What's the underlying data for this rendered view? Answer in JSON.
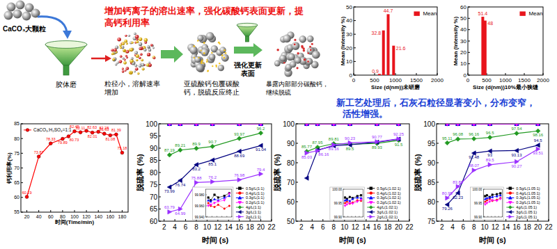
{
  "diagram": {
    "title": [
      "增加钙离子的溶出速率，强化碳酸钙表面更新，提",
      "高钙利用率"
    ],
    "nodes": [
      {
        "label": [
          "CaCO₃大颗粒"
        ]
      },
      {
        "label": [
          "胶体磨"
        ]
      },
      {
        "label": [
          "粒径小，溶解速率",
          "增加"
        ]
      },
      {
        "label": [
          "亚硫酸钙包覆碳酸",
          "钙，脱硫反应终止"
        ]
      },
      {
        "label": [
          "强化更新",
          "表面"
        ]
      },
      {
        "label": [
          "暴露内部部分碳酸钙，",
          "继续脱硫"
        ]
      }
    ]
  },
  "note": [
    "新工艺处理后，石灰石粒径显著变小，分布变窄，",
    "活性增强。"
  ],
  "chart_data": [
    {
      "type": "bar",
      "xlabel": "Size (d(nm))未研磨",
      "ylabel": "Mean (Intensity %)",
      "x": [
        615,
        712,
        825,
        955
      ],
      "series": [
        {
          "name": "Mean",
          "color": "#e8141c",
          "values": [
            0.9,
            32.8,
            44.7,
            21.6
          ]
        }
      ],
      "xlim": [
        0,
        2000
      ],
      "xticks": [
        0,
        500,
        1000,
        1500,
        2000
      ],
      "ylim": [
        0,
        50
      ],
      "yticks": [
        0,
        10,
        20,
        30,
        40,
        50
      ],
      "legend": "upper right",
      "data_labels": true
    },
    {
      "type": "bar",
      "xlabel": "Size (d(nm))10%最小狭缝",
      "ylabel": "Mean (Intensity %)",
      "x": [
        396,
        459
      ],
      "series": [
        {
          "name": "Mean",
          "color": "#e8141c",
          "values": [
            51.4,
            48
          ]
        }
      ],
      "xlim": [
        0,
        2000
      ],
      "xticks": [
        0,
        500,
        1000,
        1500,
        2000
      ],
      "ylim": [
        0,
        60
      ],
      "yticks": [
        0,
        10,
        20,
        30,
        40,
        50,
        60
      ],
      "legend": "upper right",
      "data_labels": true
    },
    {
      "type": "line",
      "xlabel": "时间(Time/min)",
      "ylabel": "钙利用率(%)",
      "x": [
        20,
        40,
        60,
        80,
        90,
        100,
        110,
        120,
        130,
        140,
        150,
        160,
        170,
        180
      ],
      "series": [
        {
          "name": "CaCO₃:H₂SO₄=1:1",
          "color": "#ff0000",
          "marker": "circle",
          "values": [
            60.19,
            73.87,
            78.33,
            79.89,
            80.73,
            82.45,
            82.11,
            82.63,
            82.01,
            82.28,
            81.63,
            81.08,
            81.39,
            75.18
          ]
        }
      ],
      "xlim": [
        10,
        190
      ],
      "xticks": [
        20,
        40,
        60,
        80,
        100,
        120,
        140,
        160,
        180
      ],
      "ylim": [
        55,
        85
      ],
      "yticks": [
        55,
        60,
        65,
        70,
        75,
        80,
        85
      ],
      "legend": "upper left",
      "data_labels": true
    },
    {
      "type": "line",
      "xlabel": "时间 (s)",
      "ylabel": "脱硫率 (%)",
      "x": [
        3,
        5,
        8,
        11,
        16,
        20
      ],
      "series": [
        {
          "name": "0.5g/L(1:1)",
          "color": "#000000",
          "marker": "square",
          "values": [
            100,
            100,
            100,
            100,
            100,
            100
          ],
          "data_labels": false
        },
        {
          "name": "0.4g/L(1:1)",
          "color": "#ff0000",
          "marker": "circle",
          "values": [
            100,
            100,
            100,
            100,
            100,
            100
          ],
          "data_labels": false
        },
        {
          "name": "0.3g/L(1:1)",
          "color": "#0000ff",
          "marker": "triangle-up",
          "values": [
            100,
            100,
            100,
            100,
            100,
            100
          ],
          "data_labels": false
        },
        {
          "name": "0.2g/L(1:1)",
          "color": "#ff00ff",
          "marker": "triangle-down",
          "values": [
            100,
            100,
            100,
            100,
            100,
            100
          ],
          "data_labels": false
        },
        {
          "name": "4g/L(1:1)",
          "color": "#229a22",
          "marker": "diamond",
          "values": [
            87.19,
            89.21,
            89.9,
            90.7,
            93.97,
            96.2
          ],
          "data_labels": true
        },
        {
          "name": "3g/L(1:1)",
          "color": "#000080",
          "marker": "triangle-left",
          "values": [
            73.99,
            76.74,
            83.2,
            85.1,
            88.69,
            91.04
          ],
          "data_labels": true
        },
        {
          "name": "2g/L(1:1)",
          "color": "#9b30ff",
          "marker": "triangle-right",
          "values": [
            63.79,
            64.99,
            75.88,
            76.2,
            76.98,
            79.4
          ],
          "data_labels": true
        }
      ],
      "xlim": [
        1,
        22
      ],
      "xticks": [
        2,
        4,
        6,
        8,
        10,
        12,
        14,
        16,
        18,
        20,
        22
      ],
      "ylim": [
        60,
        100
      ],
      "yticks": [
        60,
        65,
        70,
        75,
        80,
        85,
        90,
        95,
        100
      ],
      "legend": "lower right"
    },
    {
      "type": "line",
      "x": [
        3,
        5,
        8,
        11,
        16,
        20
      ],
      "series": [
        {
          "color": "#000000",
          "marker": "square",
          "values": [
            99.975,
            99.97,
            99.98,
            99.975,
            99.978,
            99.983
          ]
        },
        {
          "color": "#ff0000",
          "marker": "circle",
          "values": [
            99.965,
            99.96,
            99.958,
            99.962,
            99.955,
            99.96
          ]
        },
        {
          "color": "#0000ff",
          "marker": "triangle-up",
          "values": [
            99.97,
            99.968,
            99.972,
            99.97,
            99.975,
            99.978
          ]
        },
        {
          "color": "#ff00ff",
          "marker": "triangle-down",
          "values": [
            99.96,
            99.962,
            99.965,
            99.968,
            99.97,
            99.982
          ]
        }
      ],
      "xlim": [
        1,
        22
      ],
      "xticks": [
        2,
        6,
        10,
        14,
        18,
        22
      ],
      "ylim": [
        99.94,
        99.99
      ],
      "yticks": [
        {
          "value": 99.94,
          "label": "99.940"
        },
        {
          "value": 99.96,
          "label": "99.960"
        },
        {
          "value": 99.98,
          "label": "99.980"
        }
      ],
      "tick_labels": "y"
    },
    {
      "type": "line",
      "xlabel": "时间 (s)",
      "ylabel": "脱硫率 (%)",
      "x": [
        3,
        5,
        8,
        11,
        16,
        20
      ],
      "series": [
        {
          "name": "0.5g/L(1.02:1)",
          "color": "#000000",
          "marker": "square",
          "values": [
            100,
            100,
            100,
            100,
            100,
            100
          ],
          "data_labels": false
        },
        {
          "name": "0.4g/L(1.02:1)",
          "color": "#ff0000",
          "marker": "circle",
          "values": [
            100,
            100,
            100,
            100,
            100,
            100
          ],
          "data_labels": false
        },
        {
          "name": "0.3g/L(1.02:1)",
          "color": "#0000ff",
          "marker": "triangle-up",
          "values": [
            100,
            100,
            100,
            100,
            100,
            100
          ],
          "data_labels": false
        },
        {
          "name": "0.2g/L(1.02:1)",
          "color": "#ff00ff",
          "marker": "triangle-down",
          "values": [
            100,
            100,
            100,
            100,
            100,
            100
          ],
          "data_labels": false
        },
        {
          "name": "4g/L(1.02:1)",
          "color": "#229a22",
          "marker": "diamond",
          "values": [
            85.77,
            87.95,
            89.81,
            89.5,
            89.93,
            91.5
          ],
          "data_labels": true
        },
        {
          "name": "3g/L(1.02:1)",
          "color": "#000080",
          "marker": "triangle-left",
          "values": [
            72.1,
            86.5,
            88.7,
            89.2,
            90.57,
            92.1
          ],
          "data_labels": false
        },
        {
          "name": "2g/L(1.02:1)",
          "color": "#9b30ff",
          "marker": "triangle-right",
          "values": [
            85.03,
            86.16,
            89.16,
            90.23,
            90.77,
            92.25
          ],
          "data_labels": true
        }
      ],
      "xlim": [
        1,
        22
      ],
      "xticks": [
        2,
        4,
        6,
        8,
        10,
        12,
        14,
        16,
        18,
        20,
        22
      ],
      "ylim": [
        50,
        100
      ],
      "yticks": [
        50,
        60,
        70,
        80,
        90,
        100
      ],
      "legend": "lower right"
    },
    {
      "type": "line",
      "x": [
        3,
        5,
        8,
        11,
        16,
        20
      ],
      "series": [
        {
          "color": "#000000",
          "marker": "square",
          "values": [
            99.97,
            99.965,
            99.972,
            99.968,
            99.975,
            99.978
          ]
        },
        {
          "color": "#ff0000",
          "marker": "circle",
          "values": [
            99.95,
            99.955,
            99.948,
            99.952,
            99.96,
            99.958
          ]
        },
        {
          "color": "#0000ff",
          "marker": "triangle-up",
          "values": [
            99.96,
            99.962,
            99.958,
            99.965,
            99.97,
            99.968
          ]
        },
        {
          "color": "#ff00ff",
          "marker": "triangle-down",
          "values": [
            99.94,
            99.945,
            99.95,
            99.948,
            99.955,
            99.962
          ]
        }
      ],
      "xlim": [
        1,
        22
      ],
      "xticks": [
        2,
        6,
        10,
        14,
        18,
        22
      ],
      "ylim": [
        99.9,
        100
      ],
      "yticks": [
        {
          "value": 99.9,
          "label": "99.90"
        },
        {
          "value": 99.95,
          "label": "99.95"
        },
        {
          "value": 100,
          "label": "100.00"
        }
      ],
      "tick_labels": "y"
    },
    {
      "type": "line",
      "xlabel": "时间 (s)",
      "ylabel": "脱硫率 (%)",
      "x": [
        3,
        5,
        8,
        11,
        16,
        20
      ],
      "series": [
        {
          "name": "0.5g/L(1.05:1)",
          "color": "#000000",
          "marker": "square",
          "values": [
            100,
            100,
            100,
            100,
            100,
            100
          ],
          "data_labels": false
        },
        {
          "name": "0.4g/L(1.05:1)",
          "color": "#ff0000",
          "marker": "circle",
          "values": [
            100,
            100,
            100,
            100,
            100,
            100
          ],
          "data_labels": false
        },
        {
          "name": "0.3g/L(1.05:1)",
          "color": "#0000ff",
          "marker": "triangle-up",
          "values": [
            100,
            100,
            100,
            100,
            100,
            100
          ],
          "data_labels": false
        },
        {
          "name": "0.2g/L(1.05:1)",
          "color": "#ff00ff",
          "marker": "triangle-down",
          "values": [
            100,
            100,
            100,
            100,
            100,
            100
          ],
          "data_labels": false
        },
        {
          "name": "4g/L(1.05:1)",
          "color": "#229a22",
          "marker": "diamond",
          "values": [
            95.11,
            96.08,
            96.16,
            96.5,
            97.54,
            98.16
          ],
          "data_labels": true
        },
        {
          "name": "3g/L(1.05:1)",
          "color": "#000080",
          "marker": "triangle-left",
          "values": [
            79.26,
            82.23,
            92.48,
            93.0,
            93.13,
            94.5
          ],
          "data_labels": true
        },
        {
          "name": "2g/L(1.05:1)",
          "color": "#9b30ff",
          "marker": "triangle-right",
          "values": [
            80.95,
            83.89,
            88.07,
            89.5,
            90.27,
            93.51
          ],
          "data_labels": true
        }
      ],
      "xlim": [
        1,
        22
      ],
      "xticks": [
        2,
        4,
        6,
        8,
        10,
        12,
        14,
        16,
        18,
        20,
        22
      ],
      "ylim": [
        75,
        100
      ],
      "yticks": [
        75,
        80,
        85,
        90,
        95,
        100
      ],
      "legend": "lower right"
    },
    {
      "type": "line",
      "x": [
        3,
        5,
        8,
        11,
        16,
        20
      ],
      "series": [
        {
          "color": "#000000",
          "marker": "square",
          "values": [
            99.975,
            99.978,
            99.972,
            99.98,
            99.982,
            99.985
          ]
        },
        {
          "color": "#ff0000",
          "marker": "circle",
          "values": [
            99.955,
            99.96,
            99.965,
            99.958,
            99.962,
            99.968
          ]
        },
        {
          "color": "#0000ff",
          "marker": "triangle-up",
          "values": [
            99.965,
            99.968,
            99.97,
            99.972,
            99.975,
            99.978
          ]
        },
        {
          "color": "#ff00ff",
          "marker": "triangle-down",
          "values": [
            99.945,
            99.95,
            99.955,
            99.96,
            99.958,
            99.965
          ]
        }
      ],
      "xlim": [
        1,
        22
      ],
      "xticks": [
        2,
        6,
        10,
        14,
        18,
        22
      ],
      "ylim": [
        99.9,
        100
      ],
      "yticks": [
        {
          "value": 99.9,
          "label": "99.90"
        },
        {
          "value": 99.95,
          "label": "99.95"
        },
        {
          "value": 100,
          "label": "100.00"
        }
      ],
      "tick_labels": "y"
    }
  ]
}
